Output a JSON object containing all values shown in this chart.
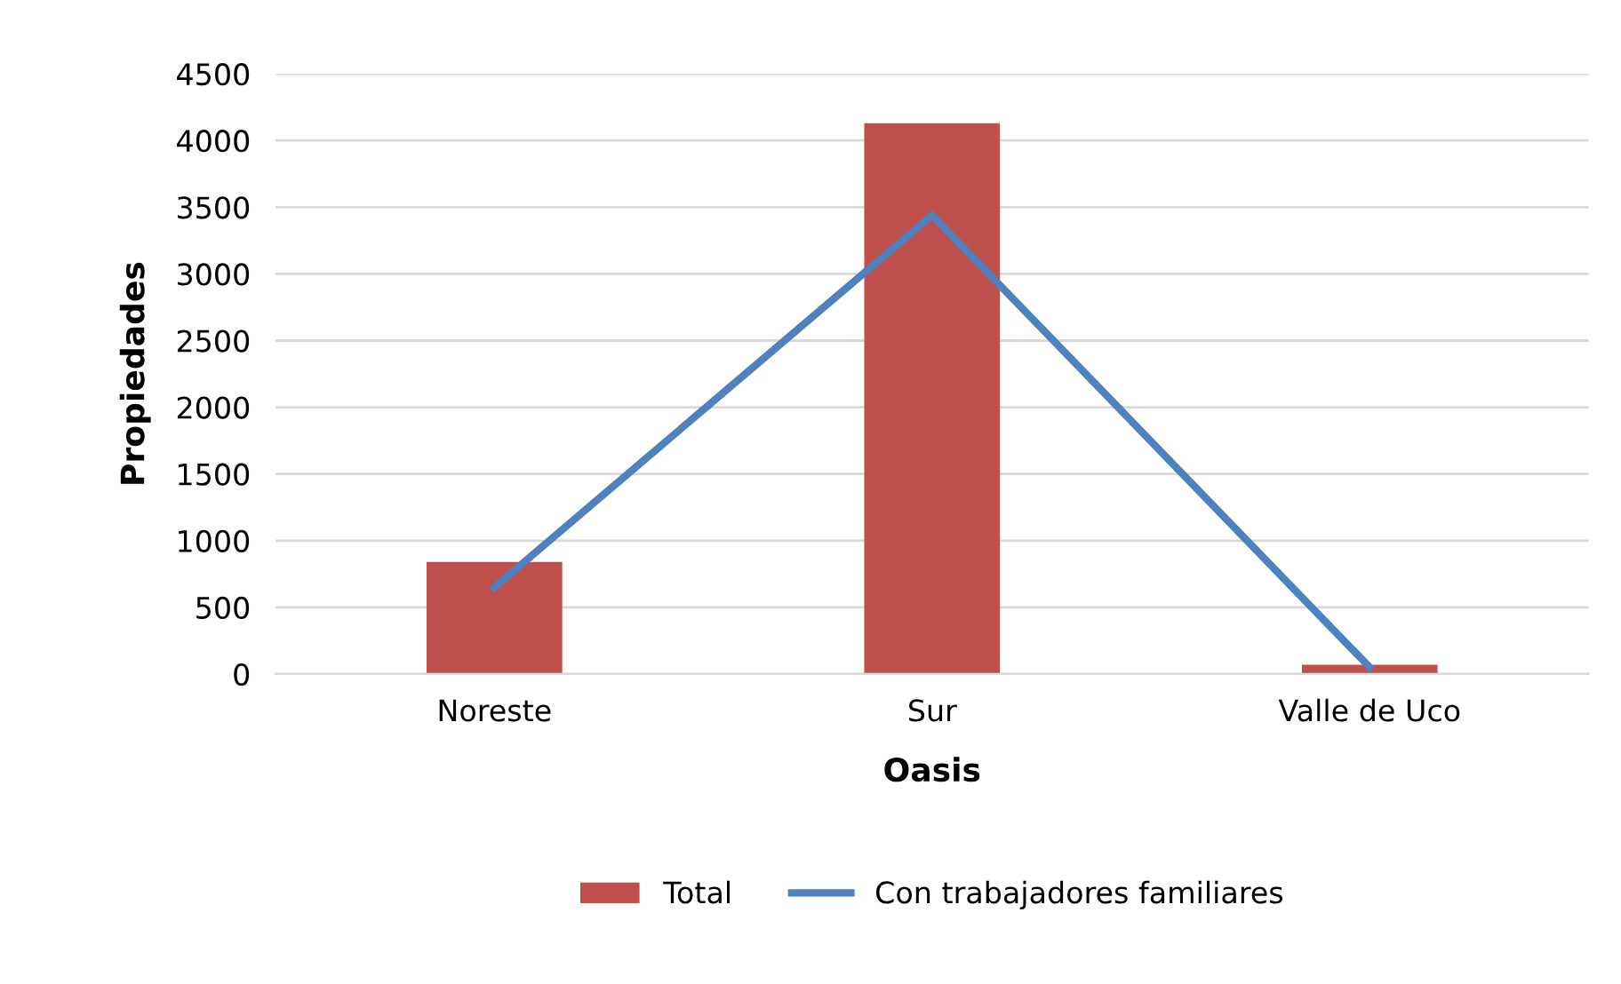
{
  "chart_data": {
    "type": "bar",
    "xlabel": "Oasis",
    "ylabel": "Propiedades",
    "categories": [
      "Noreste",
      "Sur",
      "Valle de Uco"
    ],
    "series": [
      {
        "name": "Total",
        "color": "#c0504d",
        "values": [
          840,
          4130,
          70
        ]
      },
      {
        "name": "Con trabajadores familiares",
        "type": "line",
        "color": "#4f81bd",
        "values": [
          650,
          3440,
          50
        ]
      }
    ],
    "ylim": [
      0,
      4500
    ],
    "yticks": [
      0,
      500,
      1000,
      1500,
      2000,
      2500,
      3000,
      3500,
      4000,
      4500
    ],
    "grid": "y",
    "legend": "bottom"
  }
}
